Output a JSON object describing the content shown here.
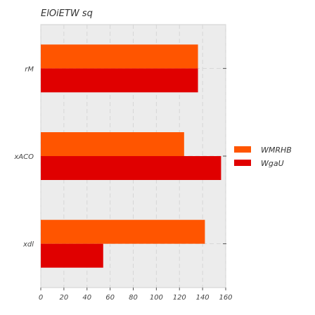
{
  "chart_data": {
    "type": "bar",
    "orientation": "horizontal",
    "title": "ElOiETW sq",
    "xlabel": "",
    "ylabel": "",
    "categories": [
      "rM",
      "xACO",
      "xdl"
    ],
    "series": [
      {
        "name": "WMRHB",
        "values": [
          136,
          124,
          142
        ],
        "color": "#ff5500"
      },
      {
        "name": "WgaU",
        "values": [
          136,
          156,
          54
        ],
        "color": "#e00000"
      }
    ],
    "xlim": [
      0,
      160
    ],
    "xticks": [
      "0",
      "20",
      "40",
      "60",
      "80",
      "100",
      "120",
      "140",
      "160"
    ],
    "grid": true,
    "legend_position": "right",
    "background_color": "#ececec"
  }
}
